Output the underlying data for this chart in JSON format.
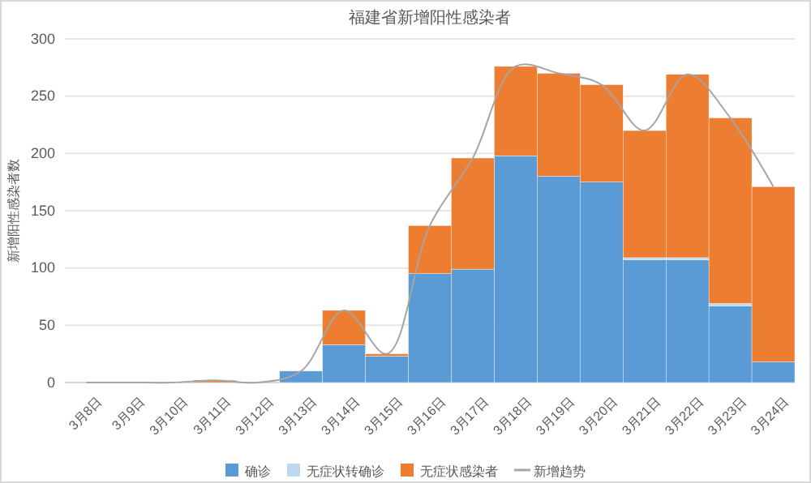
{
  "chart_data": {
    "type": "bar",
    "title": "福建省新增阳性感染者",
    "ylabel": "新增阳性感染者数",
    "categories": [
      "3月8日",
      "3月9日",
      "3月10日",
      "3月11日",
      "3月12日",
      "3月13日",
      "3月14日",
      "3月15日",
      "3月16日",
      "3月17日",
      "3月18日",
      "3月19日",
      "3月20日",
      "3月21日",
      "3月22日",
      "3月23日",
      "3月24日"
    ],
    "stacked": true,
    "series": [
      {
        "name": "确诊",
        "color": "#5b9bd5",
        "values": [
          0,
          0,
          0,
          0,
          0,
          10,
          33,
          23,
          95,
          99,
          198,
          180,
          175,
          107,
          107,
          67,
          18
        ]
      },
      {
        "name": "无症状转确诊",
        "color": "#bdd7ee",
        "values": [
          0,
          0,
          0,
          0,
          0,
          0,
          0,
          0,
          0,
          0,
          0,
          0,
          0,
          2,
          2,
          2,
          0
        ]
      },
      {
        "name": "无症状感染者",
        "color": "#ed7d31",
        "values": [
          0,
          0,
          0,
          2,
          0,
          0,
          30,
          2,
          42,
          97,
          78,
          90,
          85,
          111,
          160,
          162,
          153
        ]
      },
      {
        "name": "新增趋势",
        "type": "line",
        "color": "#a5a5a5",
        "values": [
          0,
          0,
          0,
          2,
          0,
          10,
          63,
          25,
          137,
          196,
          276,
          270,
          260,
          220,
          269,
          231,
          171
        ]
      }
    ],
    "ylim": [
      0,
      300
    ],
    "yticks": [
      0,
      50,
      100,
      150,
      200,
      250,
      300
    ],
    "grid": "y",
    "legend": "bottom"
  }
}
